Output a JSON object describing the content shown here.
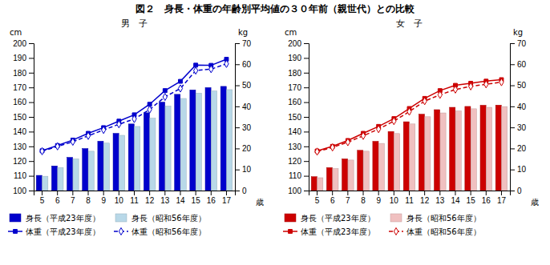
{
  "chart_data": [
    {
      "type": "bar",
      "title": "図２　身長・体重の年齢別平均値の３０年前（親世代）との比較",
      "subtitle": "男　子",
      "xlabel": "歳",
      "ylabel": "cm",
      "y2label": "kg",
      "categories": [
        5,
        6,
        7,
        8,
        9,
        10,
        11,
        12,
        13,
        14,
        15,
        16,
        17
      ],
      "series": [
        {
          "name": "身長（平成23年度）",
          "type": "bar",
          "color": "#0000cc",
          "values": [
            110.3,
            116.7,
            122.5,
            128.5,
            133.5,
            138.8,
            145.2,
            152.8,
            160.0,
            165.3,
            168.3,
            169.9,
            170.7
          ]
        },
        {
          "name": "身長（昭和56年度）",
          "type": "bar",
          "color": "#b8d8e8",
          "values": [
            109.7,
            115.6,
            121.5,
            126.7,
            132.2,
            137.5,
            143.5,
            149.1,
            157.3,
            162.5,
            166.1,
            167.6,
            168.5
          ]
        },
        {
          "name": "体重（平成23年度）",
          "type": "line",
          "axis": "y2",
          "color": "#0000cc",
          "marker": "square",
          "line_style": "solid",
          "values": [
            18.9,
            21.4,
            24.0,
            27.2,
            29.9,
            33.0,
            36.0,
            41.0,
            47.5,
            51.9,
            59.6,
            59.5,
            62.4
          ]
        },
        {
          "name": "体重（昭和56年度）",
          "type": "line",
          "axis": "y2",
          "color": "#0000cc",
          "marker": "diamond",
          "line_style": "dashed",
          "values": [
            18.7,
            21.0,
            23.2,
            26.0,
            28.8,
            31.5,
            34.0,
            38.5,
            44.5,
            48.5,
            57.0,
            57.7,
            60.2
          ]
        }
      ],
      "ylim": [
        100,
        200
      ],
      "yticks": [
        100,
        110,
        120,
        130,
        140,
        150,
        160,
        170,
        180,
        190,
        200
      ],
      "y2lim": [
        0,
        70
      ],
      "y2ticks": [
        0,
        10,
        20,
        30,
        40,
        50,
        60,
        70
      ],
      "legend": "bottom"
    },
    {
      "type": "bar",
      "subtitle": "女　子",
      "xlabel": "歳",
      "ylabel": "cm",
      "y2label": "kg",
      "categories": [
        5,
        6,
        7,
        8,
        9,
        10,
        11,
        12,
        13,
        14,
        15,
        16,
        17
      ],
      "series": [
        {
          "name": "身長（平成23年度）",
          "type": "bar",
          "color": "#cc0000",
          "values": [
            109.4,
            115.6,
            121.5,
            127.3,
            133.4,
            140.1,
            146.7,
            151.8,
            154.9,
            156.5,
            157.1,
            157.9,
            158.0
          ]
        },
        {
          "name": "身長（昭和56年度）",
          "type": "bar",
          "color": "#f0c0c0",
          "values": [
            108.7,
            114.9,
            120.7,
            126.7,
            132.0,
            138.7,
            145.2,
            150.1,
            152.7,
            154.0,
            155.5,
            156.5,
            157.0
          ]
        },
        {
          "name": "体重（平成23年度）",
          "type": "line",
          "axis": "y2",
          "color": "#cc0000",
          "marker": "square",
          "line_style": "solid",
          "values": [
            18.8,
            21.0,
            23.8,
            27.2,
            30.5,
            34.2,
            39.0,
            43.8,
            47.5,
            50.0,
            51.0,
            52.0,
            52.7
          ]
        },
        {
          "name": "体重（昭和56年度）",
          "type": "line",
          "axis": "y2",
          "color": "#cc0000",
          "marker": "diamond",
          "line_style": "dashed",
          "values": [
            18.5,
            20.5,
            23.0,
            26.0,
            29.2,
            33.0,
            37.5,
            42.5,
            45.5,
            48.0,
            49.5,
            50.5,
            51.5
          ]
        }
      ],
      "ylim": [
        100,
        200
      ],
      "yticks": [
        100,
        110,
        120,
        130,
        140,
        150,
        160,
        170,
        180,
        190,
        200
      ],
      "y2lim": [
        0,
        70
      ],
      "y2ticks": [
        0,
        10,
        20,
        30,
        40,
        50,
        60,
        70
      ],
      "legend": "bottom"
    }
  ]
}
